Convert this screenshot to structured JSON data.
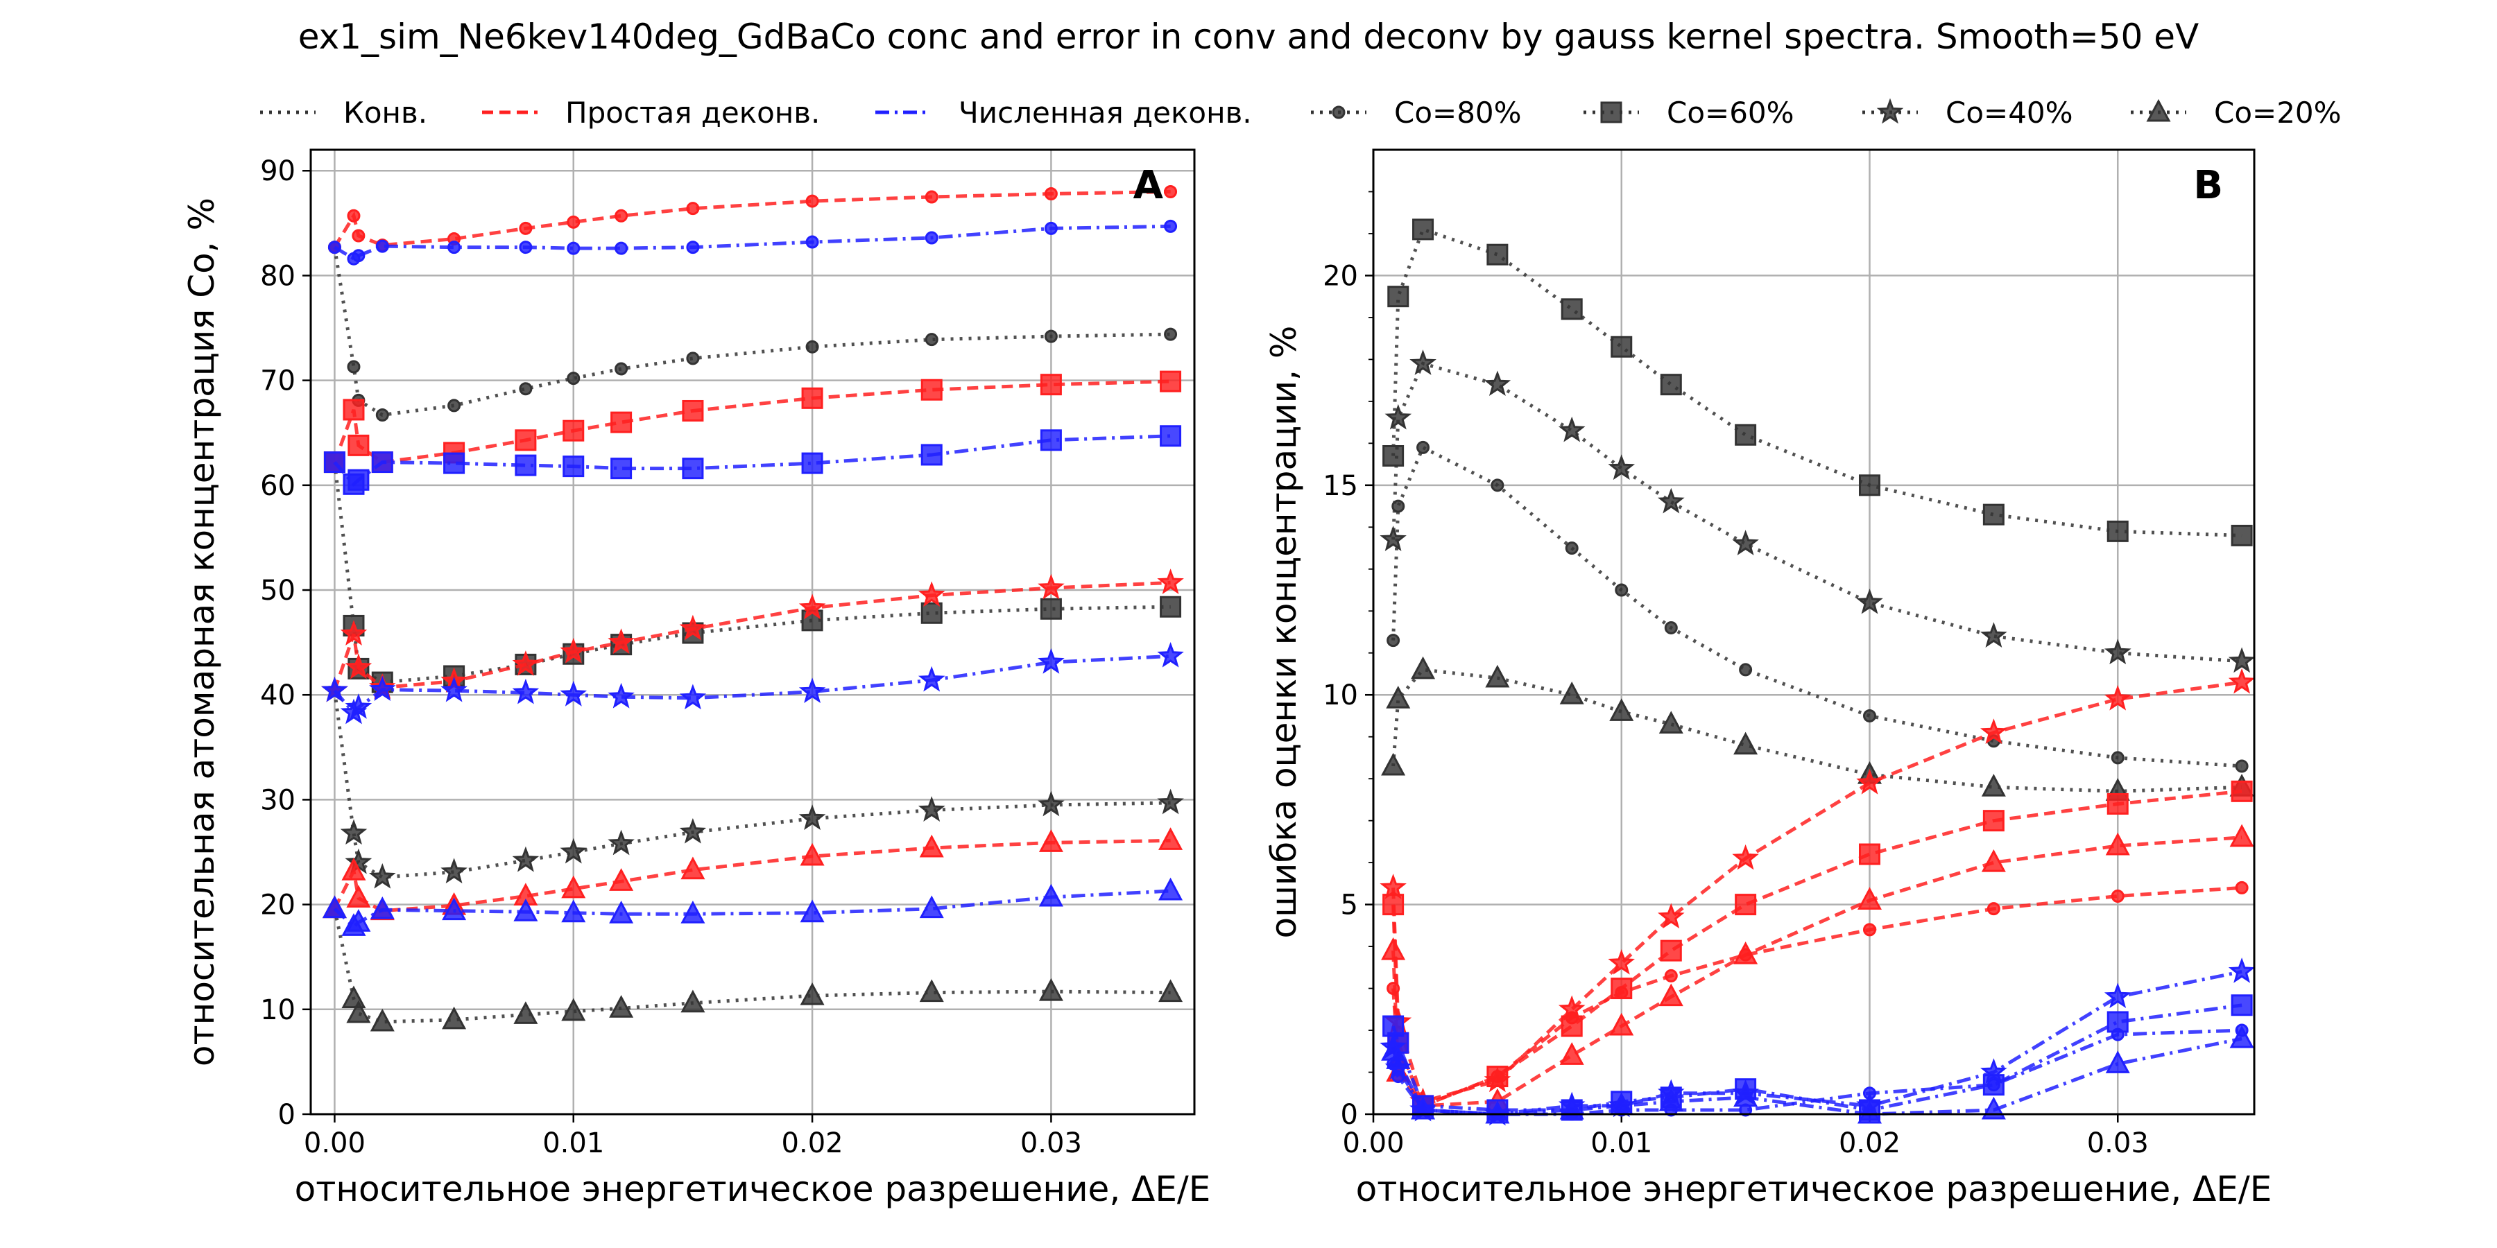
{
  "figure_title": "ex1_sim_Ne6kev140deg_GdBaCo conc and error in conv and deconv by gauss kernel spectra. Smooth=50 eV",
  "legend": {
    "entries": [
      {
        "label": "Конв.",
        "style": "dotted",
        "color": "#333333",
        "marker": "none"
      },
      {
        "label": "Простая деконв.",
        "style": "dashed",
        "color": "#ff2020",
        "marker": "none"
      },
      {
        "label": "Численная деконв.",
        "style": "dashdot",
        "color": "#2020ff",
        "marker": "none"
      },
      {
        "label": "Co=80%",
        "style": "dotted",
        "color": "#333333",
        "marker": "circle"
      },
      {
        "label": "Co=60%",
        "style": "dotted",
        "color": "#333333",
        "marker": "square"
      },
      {
        "label": "Co=40%",
        "style": "dotted",
        "color": "#333333",
        "marker": "star"
      },
      {
        "label": "Co=20%",
        "style": "dotted",
        "color": "#333333",
        "marker": "triangle"
      }
    ]
  },
  "colors": {
    "conv": "#333333",
    "simple": "#ff2020",
    "numeric": "#2020ff",
    "grid": "#b0b0b0"
  },
  "chart_data": [
    {
      "type": "line",
      "panel_label": "A",
      "xlabel": "относительное энергетическое разрешение, ΔE/E",
      "ylabel": "относительная атомарная концентрация Co, %",
      "xlim": [
        -0.001,
        0.036
      ],
      "ylim": [
        0,
        92
      ],
      "xticks": [
        0.0,
        0.01,
        0.02,
        0.03
      ],
      "xtick_labels": [
        "0.00",
        "0.01",
        "0.02",
        "0.03"
      ],
      "yticks": [
        0,
        10,
        20,
        30,
        40,
        50,
        60,
        70,
        80,
        90
      ],
      "ytick_labels": [
        "0",
        "10",
        "20",
        "30",
        "40",
        "50",
        "60",
        "70",
        "80",
        "90"
      ],
      "grid": true,
      "x": [
        0.0,
        0.0008,
        0.001,
        0.002,
        0.005,
        0.008,
        0.01,
        0.012,
        0.015,
        0.02,
        0.025,
        0.03,
        0.035
      ],
      "series": [
        {
          "method": "conv",
          "marker": "circle",
          "values": [
            82.7,
            71.3,
            68.1,
            66.7,
            67.6,
            69.2,
            70.2,
            71.1,
            72.1,
            73.2,
            73.9,
            74.2,
            74.4
          ]
        },
        {
          "method": "simple",
          "marker": "circle",
          "values": [
            82.7,
            85.7,
            83.8,
            82.9,
            83.5,
            84.5,
            85.1,
            85.7,
            86.4,
            87.1,
            87.5,
            87.8,
            88.0
          ]
        },
        {
          "method": "numeric",
          "marker": "circle",
          "values": [
            82.7,
            81.6,
            81.9,
            82.8,
            82.7,
            82.7,
            82.6,
            82.6,
            82.7,
            83.2,
            83.6,
            84.5,
            84.7
          ]
        },
        {
          "method": "conv",
          "marker": "square",
          "values": [
            62.2,
            46.6,
            42.5,
            41.2,
            41.8,
            42.9,
            43.9,
            44.8,
            45.9,
            47.1,
            47.8,
            48.2,
            48.4
          ]
        },
        {
          "method": "simple",
          "marker": "square",
          "values": [
            62.2,
            67.2,
            63.8,
            62.2,
            63.1,
            64.3,
            65.2,
            66.0,
            67.1,
            68.3,
            69.1,
            69.6,
            69.9
          ]
        },
        {
          "method": "numeric",
          "marker": "square",
          "values": [
            62.2,
            60.1,
            60.5,
            62.2,
            62.1,
            61.9,
            61.8,
            61.6,
            61.6,
            62.1,
            62.9,
            64.3,
            64.7
          ]
        },
        {
          "method": "conv",
          "marker": "star",
          "values": [
            40.4,
            26.8,
            24.0,
            22.6,
            23.1,
            24.2,
            25.0,
            25.8,
            26.9,
            28.2,
            29.0,
            29.5,
            29.7
          ]
        },
        {
          "method": "simple",
          "marker": "star",
          "values": [
            40.4,
            45.8,
            42.6,
            40.7,
            41.3,
            42.9,
            44.1,
            45.0,
            46.3,
            48.3,
            49.5,
            50.2,
            50.7
          ]
        },
        {
          "method": "numeric",
          "marker": "star",
          "values": [
            40.4,
            38.3,
            38.8,
            40.5,
            40.4,
            40.2,
            40.0,
            39.8,
            39.7,
            40.3,
            41.4,
            43.1,
            43.7
          ]
        },
        {
          "method": "conv",
          "marker": "triangle",
          "values": [
            19.6,
            11.0,
            9.6,
            8.8,
            9.0,
            9.5,
            9.8,
            10.1,
            10.6,
            11.3,
            11.6,
            11.7,
            11.6
          ]
        },
        {
          "method": "simple",
          "marker": "triangle",
          "values": [
            19.6,
            23.2,
            20.6,
            19.4,
            19.9,
            20.8,
            21.5,
            22.2,
            23.3,
            24.6,
            25.4,
            25.9,
            26.1
          ]
        },
        {
          "method": "numeric",
          "marker": "triangle",
          "values": [
            19.6,
            17.9,
            18.3,
            19.5,
            19.4,
            19.3,
            19.2,
            19.1,
            19.1,
            19.2,
            19.6,
            20.7,
            21.3
          ]
        }
      ]
    },
    {
      "type": "line",
      "panel_label": "B",
      "xlabel": "относительное энергетическое разрешение, ΔE/E",
      "ylabel": "ошибка оценки концентрации, %",
      "xlim": [
        0.0,
        0.0355
      ],
      "ylim": [
        0,
        23
      ],
      "xticks": [
        0.0,
        0.01,
        0.02,
        0.03
      ],
      "xtick_labels": [
        "0.00",
        "0.01",
        "0.02",
        "0.03"
      ],
      "yticks": [
        0,
        5,
        10,
        15,
        20
      ],
      "ytick_labels": [
        "0",
        "5",
        "10",
        "15",
        "20"
      ],
      "grid": true,
      "x": [
        0.0008,
        0.001,
        0.002,
        0.005,
        0.008,
        0.01,
        0.012,
        0.015,
        0.02,
        0.025,
        0.03,
        0.035
      ],
      "series": [
        {
          "method": "conv",
          "marker": "circle",
          "values": [
            11.3,
            14.5,
            15.9,
            15.0,
            13.5,
            12.5,
            11.6,
            10.6,
            9.5,
            8.9,
            8.5,
            8.3
          ]
        },
        {
          "method": "conv",
          "marker": "square",
          "values": [
            15.7,
            19.5,
            21.1,
            20.5,
            19.2,
            18.3,
            17.4,
            16.2,
            15.0,
            14.3,
            13.9,
            13.8
          ]
        },
        {
          "method": "conv",
          "marker": "star",
          "values": [
            13.7,
            16.6,
            17.9,
            17.4,
            16.3,
            15.4,
            14.6,
            13.6,
            12.2,
            11.4,
            11.0,
            10.8
          ]
        },
        {
          "method": "conv",
          "marker": "triangle",
          "values": [
            8.3,
            9.9,
            10.6,
            10.4,
            10.0,
            9.6,
            9.3,
            8.8,
            8.1,
            7.8,
            7.7,
            7.8
          ]
        },
        {
          "method": "simple",
          "marker": "circle",
          "values": [
            3.0,
            1.2,
            0.2,
            0.9,
            2.3,
            2.9,
            3.3,
            3.8,
            4.4,
            4.9,
            5.2,
            5.4
          ]
        },
        {
          "method": "simple",
          "marker": "square",
          "values": [
            5.0,
            1.7,
            0.2,
            0.9,
            2.1,
            3.0,
            3.9,
            5.0,
            6.2,
            7.0,
            7.4,
            7.7
          ]
        },
        {
          "method": "simple",
          "marker": "star",
          "values": [
            5.4,
            2.2,
            0.3,
            0.8,
            2.5,
            3.6,
            4.7,
            6.1,
            7.9,
            9.1,
            9.9,
            10.3
          ]
        },
        {
          "method": "simple",
          "marker": "triangle",
          "values": [
            3.9,
            1.0,
            0.2,
            0.3,
            1.4,
            2.1,
            2.8,
            3.8,
            5.1,
            6.0,
            6.4,
            6.6
          ]
        },
        {
          "method": "numeric",
          "marker": "circle",
          "values": [
            1.2,
            0.9,
            0.1,
            0.0,
            0.0,
            0.1,
            0.1,
            0.1,
            0.5,
            0.7,
            1.9,
            2.0
          ]
        },
        {
          "method": "numeric",
          "marker": "square",
          "values": [
            2.1,
            1.7,
            0.2,
            0.1,
            0.1,
            0.3,
            0.4,
            0.6,
            0.1,
            0.7,
            2.2,
            2.6
          ]
        },
        {
          "method": "numeric",
          "marker": "star",
          "values": [
            1.6,
            1.1,
            0.1,
            0.0,
            0.2,
            0.2,
            0.5,
            0.5,
            0.2,
            1.0,
            2.8,
            3.4
          ]
        },
        {
          "method": "numeric",
          "marker": "triangle",
          "values": [
            1.5,
            1.3,
            0.1,
            0.0,
            0.1,
            0.2,
            0.3,
            0.4,
            0.0,
            0.1,
            1.2,
            1.8
          ]
        }
      ]
    }
  ]
}
